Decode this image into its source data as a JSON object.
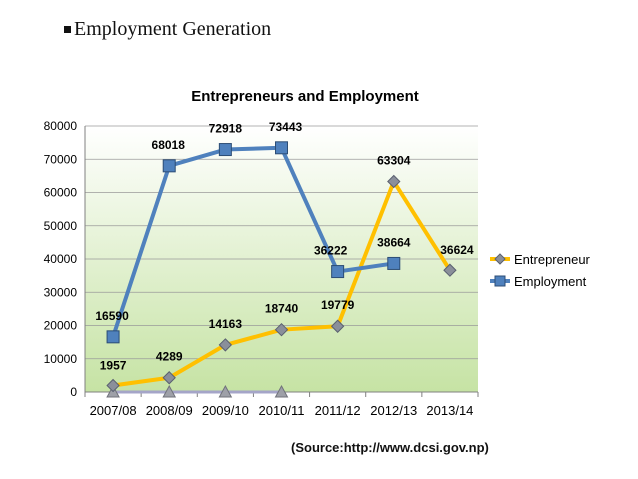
{
  "heading": {
    "text": "Employment Generation"
  },
  "source": {
    "text": "(Source:http://www.dcsi.gov.np)"
  },
  "chart_data": {
    "type": "line",
    "title": "Entrepreneurs and Employment",
    "xlabel": "",
    "ylabel": "",
    "categories": [
      "2007/08",
      "2008/09",
      "2009/10",
      "2010/11",
      "2011/12",
      "2012/13",
      "2013/14"
    ],
    "ylim": [
      0,
      80000
    ],
    "yticks": [
      0,
      10000,
      20000,
      30000,
      40000,
      50000,
      60000,
      70000,
      80000
    ],
    "grid": true,
    "legend": "right",
    "series": [
      {
        "name": "Entrepreneur",
        "color": "#FFC000",
        "marker": "diamond",
        "values": [
          1957,
          4289,
          14163,
          18740,
          19779,
          63304,
          36624
        ],
        "labels": [
          "1957",
          "4289",
          "14163",
          "18740",
          "19779",
          "63304",
          "36624"
        ]
      },
      {
        "name": "Employment",
        "color": "#4F81BD",
        "marker": "square",
        "values": [
          16590,
          68018,
          72918,
          73443,
          36222,
          38664,
          null
        ],
        "labels": [
          "16590",
          "68018",
          "72918",
          "73443",
          "36222",
          "38664",
          ""
        ]
      },
      {
        "name": "",
        "color": "#A5A5C8",
        "marker": "triangle",
        "values": [
          0,
          0,
          0,
          0,
          null,
          null,
          null
        ],
        "labels": [],
        "in_legend": false
      }
    ]
  }
}
